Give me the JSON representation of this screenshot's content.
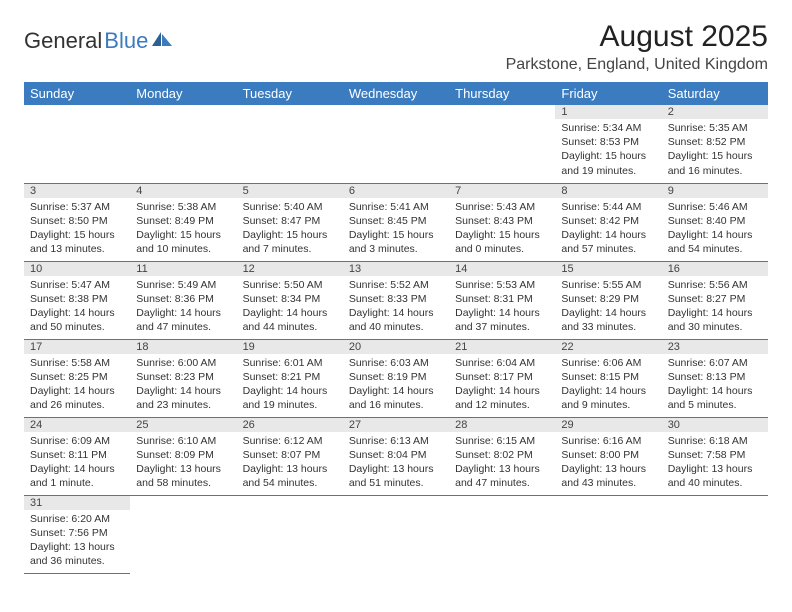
{
  "logo": {
    "text1": "General",
    "text2": "Blue",
    "text1_color": "#333333",
    "text2_color": "#3b7bbf"
  },
  "title": "August 2025",
  "location": "Parkstone, England, United Kingdom",
  "colors": {
    "header_bg": "#3b7bbf",
    "header_text": "#ffffff",
    "daynum_bg": "#e8e8e8",
    "border": "#3b7bbf",
    "text": "#333333"
  },
  "fonts": {
    "title_size": 30,
    "location_size": 16,
    "header_size": 13,
    "cell_size": 10.5,
    "daynum_size": 11
  },
  "days_of_week": [
    "Sunday",
    "Monday",
    "Tuesday",
    "Wednesday",
    "Thursday",
    "Friday",
    "Saturday"
  ],
  "weeks": [
    [
      null,
      null,
      null,
      null,
      null,
      {
        "n": "1",
        "sr": "5:34 AM",
        "ss": "8:53 PM",
        "dl": "15 hours and 19 minutes."
      },
      {
        "n": "2",
        "sr": "5:35 AM",
        "ss": "8:52 PM",
        "dl": "15 hours and 16 minutes."
      }
    ],
    [
      {
        "n": "3",
        "sr": "5:37 AM",
        "ss": "8:50 PM",
        "dl": "15 hours and 13 minutes."
      },
      {
        "n": "4",
        "sr": "5:38 AM",
        "ss": "8:49 PM",
        "dl": "15 hours and 10 minutes."
      },
      {
        "n": "5",
        "sr": "5:40 AM",
        "ss": "8:47 PM",
        "dl": "15 hours and 7 minutes."
      },
      {
        "n": "6",
        "sr": "5:41 AM",
        "ss": "8:45 PM",
        "dl": "15 hours and 3 minutes."
      },
      {
        "n": "7",
        "sr": "5:43 AM",
        "ss": "8:43 PM",
        "dl": "15 hours and 0 minutes."
      },
      {
        "n": "8",
        "sr": "5:44 AM",
        "ss": "8:42 PM",
        "dl": "14 hours and 57 minutes."
      },
      {
        "n": "9",
        "sr": "5:46 AM",
        "ss": "8:40 PM",
        "dl": "14 hours and 54 minutes."
      }
    ],
    [
      {
        "n": "10",
        "sr": "5:47 AM",
        "ss": "8:38 PM",
        "dl": "14 hours and 50 minutes."
      },
      {
        "n": "11",
        "sr": "5:49 AM",
        "ss": "8:36 PM",
        "dl": "14 hours and 47 minutes."
      },
      {
        "n": "12",
        "sr": "5:50 AM",
        "ss": "8:34 PM",
        "dl": "14 hours and 44 minutes."
      },
      {
        "n": "13",
        "sr": "5:52 AM",
        "ss": "8:33 PM",
        "dl": "14 hours and 40 minutes."
      },
      {
        "n": "14",
        "sr": "5:53 AM",
        "ss": "8:31 PM",
        "dl": "14 hours and 37 minutes."
      },
      {
        "n": "15",
        "sr": "5:55 AM",
        "ss": "8:29 PM",
        "dl": "14 hours and 33 minutes."
      },
      {
        "n": "16",
        "sr": "5:56 AM",
        "ss": "8:27 PM",
        "dl": "14 hours and 30 minutes."
      }
    ],
    [
      {
        "n": "17",
        "sr": "5:58 AM",
        "ss": "8:25 PM",
        "dl": "14 hours and 26 minutes."
      },
      {
        "n": "18",
        "sr": "6:00 AM",
        "ss": "8:23 PM",
        "dl": "14 hours and 23 minutes."
      },
      {
        "n": "19",
        "sr": "6:01 AM",
        "ss": "8:21 PM",
        "dl": "14 hours and 19 minutes."
      },
      {
        "n": "20",
        "sr": "6:03 AM",
        "ss": "8:19 PM",
        "dl": "14 hours and 16 minutes."
      },
      {
        "n": "21",
        "sr": "6:04 AM",
        "ss": "8:17 PM",
        "dl": "14 hours and 12 minutes."
      },
      {
        "n": "22",
        "sr": "6:06 AM",
        "ss": "8:15 PM",
        "dl": "14 hours and 9 minutes."
      },
      {
        "n": "23",
        "sr": "6:07 AM",
        "ss": "8:13 PM",
        "dl": "14 hours and 5 minutes."
      }
    ],
    [
      {
        "n": "24",
        "sr": "6:09 AM",
        "ss": "8:11 PM",
        "dl": "14 hours and 1 minute."
      },
      {
        "n": "25",
        "sr": "6:10 AM",
        "ss": "8:09 PM",
        "dl": "13 hours and 58 minutes."
      },
      {
        "n": "26",
        "sr": "6:12 AM",
        "ss": "8:07 PM",
        "dl": "13 hours and 54 minutes."
      },
      {
        "n": "27",
        "sr": "6:13 AM",
        "ss": "8:04 PM",
        "dl": "13 hours and 51 minutes."
      },
      {
        "n": "28",
        "sr": "6:15 AM",
        "ss": "8:02 PM",
        "dl": "13 hours and 47 minutes."
      },
      {
        "n": "29",
        "sr": "6:16 AM",
        "ss": "8:00 PM",
        "dl": "13 hours and 43 minutes."
      },
      {
        "n": "30",
        "sr": "6:18 AM",
        "ss": "7:58 PM",
        "dl": "13 hours and 40 minutes."
      }
    ],
    [
      {
        "n": "31",
        "sr": "6:20 AM",
        "ss": "7:56 PM",
        "dl": "13 hours and 36 minutes."
      },
      null,
      null,
      null,
      null,
      null,
      null
    ]
  ],
  "labels": {
    "sunrise": "Sunrise:",
    "sunset": "Sunset:",
    "daylight": "Daylight:"
  }
}
